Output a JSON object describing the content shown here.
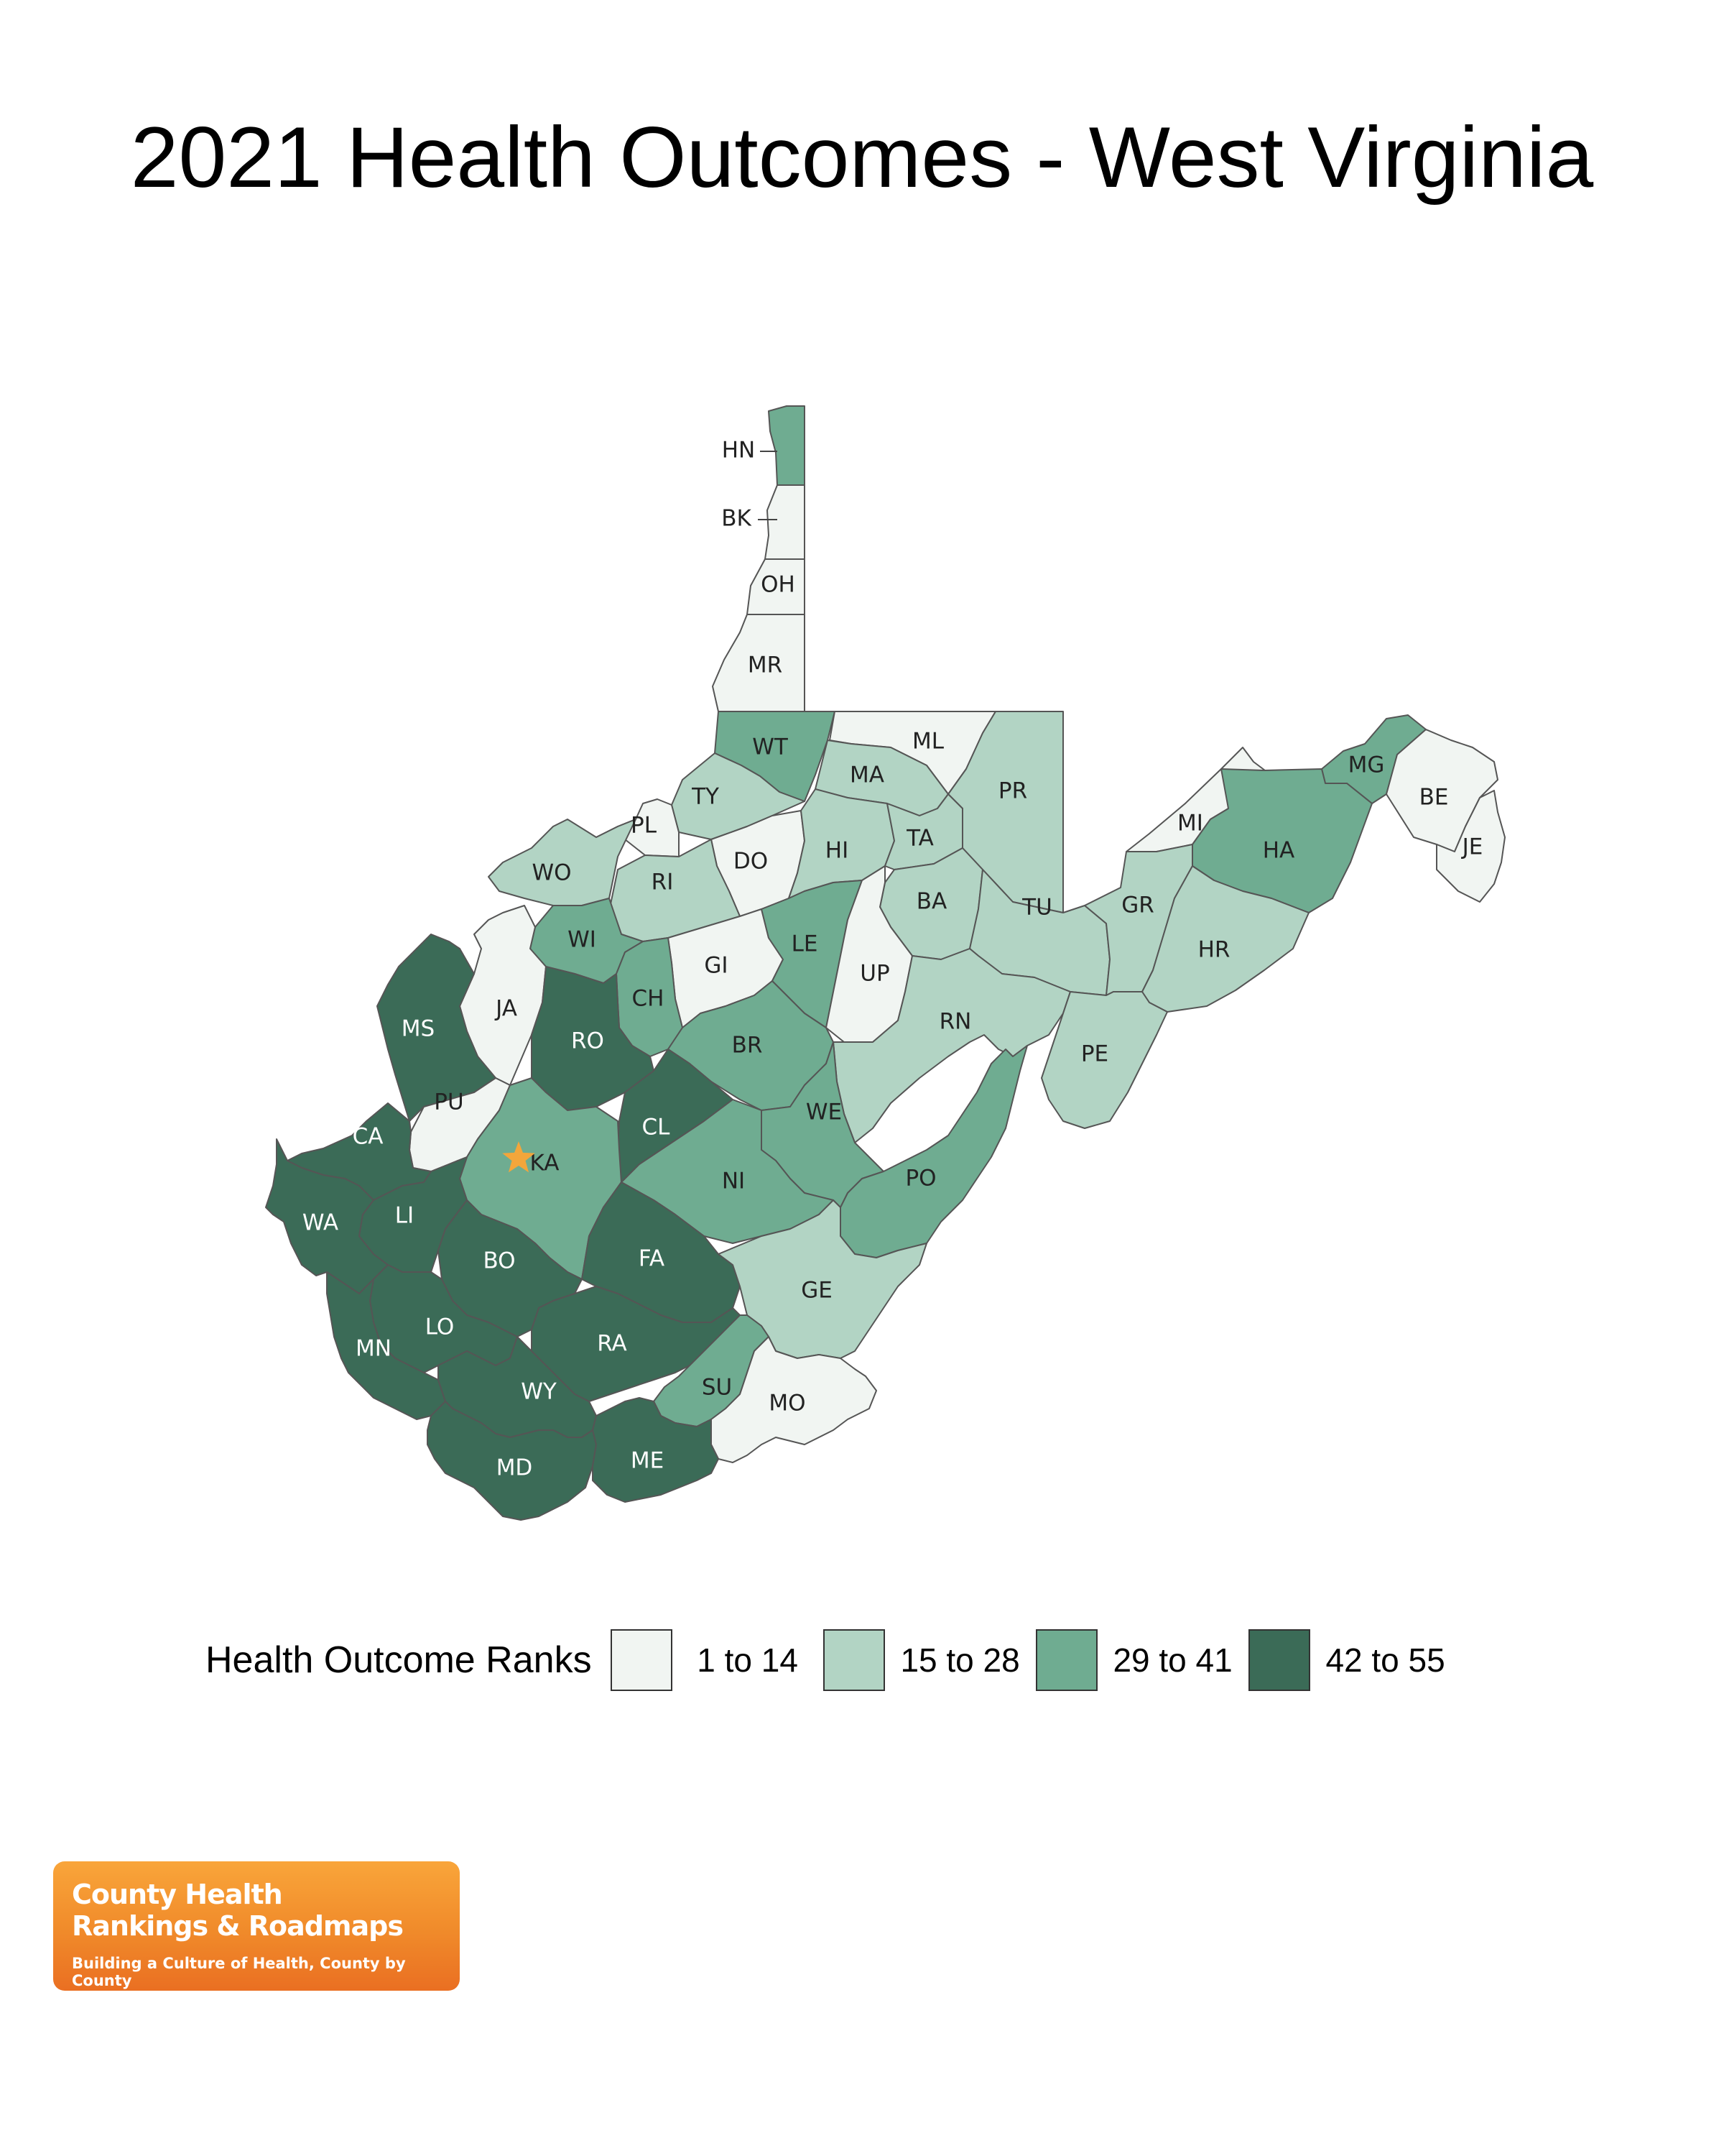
{
  "title": "2021 Health Outcomes - West Virginia",
  "legend": {
    "title": "Health Outcome Ranks",
    "items": [
      {
        "label": "1 to 14",
        "color": "#f1f5f2"
      },
      {
        "label": "15 to 28",
        "color": "#b2d4c4"
      },
      {
        "label": "29 to 41",
        "color": "#6fac91"
      },
      {
        "label": "42 to 55",
        "color": "#3b6b57"
      }
    ]
  },
  "logo": {
    "line1": "County Health",
    "line2": "Rankings & Roadmaps",
    "tagline": "Building a Culture of Health, County by County"
  },
  "capital_marker": {
    "icon": "star-icon",
    "county": "KA",
    "color": "#f3a63b"
  },
  "counties": [
    {
      "abbr": "HN",
      "bin": 2
    },
    {
      "abbr": "BK",
      "bin": 0
    },
    {
      "abbr": "OH",
      "bin": 0
    },
    {
      "abbr": "MR",
      "bin": 0
    },
    {
      "abbr": "WT",
      "bin": 2
    },
    {
      "abbr": "ML",
      "bin": 0
    },
    {
      "abbr": "MA",
      "bin": 1
    },
    {
      "abbr": "PR",
      "bin": 1
    },
    {
      "abbr": "TY",
      "bin": 1
    },
    {
      "abbr": "PL",
      "bin": 0
    },
    {
      "abbr": "DO",
      "bin": 0
    },
    {
      "abbr": "HI",
      "bin": 1
    },
    {
      "abbr": "TA",
      "bin": 1
    },
    {
      "abbr": "WO",
      "bin": 1
    },
    {
      "abbr": "RI",
      "bin": 1
    },
    {
      "abbr": "BA",
      "bin": 1
    },
    {
      "abbr": "TU",
      "bin": 1
    },
    {
      "abbr": "MI",
      "bin": 0
    },
    {
      "abbr": "MG",
      "bin": 2
    },
    {
      "abbr": "BE",
      "bin": 0
    },
    {
      "abbr": "JE",
      "bin": 0
    },
    {
      "abbr": "HA",
      "bin": 2
    },
    {
      "abbr": "GR",
      "bin": 1
    },
    {
      "abbr": "HR",
      "bin": 1
    },
    {
      "abbr": "WI",
      "bin": 2
    },
    {
      "abbr": "GI",
      "bin": 0
    },
    {
      "abbr": "LE",
      "bin": 2
    },
    {
      "abbr": "UP",
      "bin": 0
    },
    {
      "abbr": "JA",
      "bin": 0
    },
    {
      "abbr": "CH",
      "bin": 2
    },
    {
      "abbr": "RO",
      "bin": 3
    },
    {
      "abbr": "MS",
      "bin": 3
    },
    {
      "abbr": "BR",
      "bin": 2
    },
    {
      "abbr": "RN",
      "bin": 1
    },
    {
      "abbr": "PE",
      "bin": 1
    },
    {
      "abbr": "PU",
      "bin": 0
    },
    {
      "abbr": "CL",
      "bin": 3
    },
    {
      "abbr": "WE",
      "bin": 2
    },
    {
      "abbr": "CA",
      "bin": 3
    },
    {
      "abbr": "KA",
      "bin": 2
    },
    {
      "abbr": "NI",
      "bin": 2
    },
    {
      "abbr": "PO",
      "bin": 2
    },
    {
      "abbr": "WA",
      "bin": 3
    },
    {
      "abbr": "LI",
      "bin": 3
    },
    {
      "abbr": "BO",
      "bin": 3
    },
    {
      "abbr": "FA",
      "bin": 3
    },
    {
      "abbr": "GE",
      "bin": 1
    },
    {
      "abbr": "LO",
      "bin": 3
    },
    {
      "abbr": "MN",
      "bin": 3
    },
    {
      "abbr": "RA",
      "bin": 3
    },
    {
      "abbr": "SU",
      "bin": 2
    },
    {
      "abbr": "MO",
      "bin": 0
    },
    {
      "abbr": "WY",
      "bin": 3
    },
    {
      "abbr": "MD",
      "bin": 3
    },
    {
      "abbr": "ME",
      "bin": 3
    }
  ]
}
